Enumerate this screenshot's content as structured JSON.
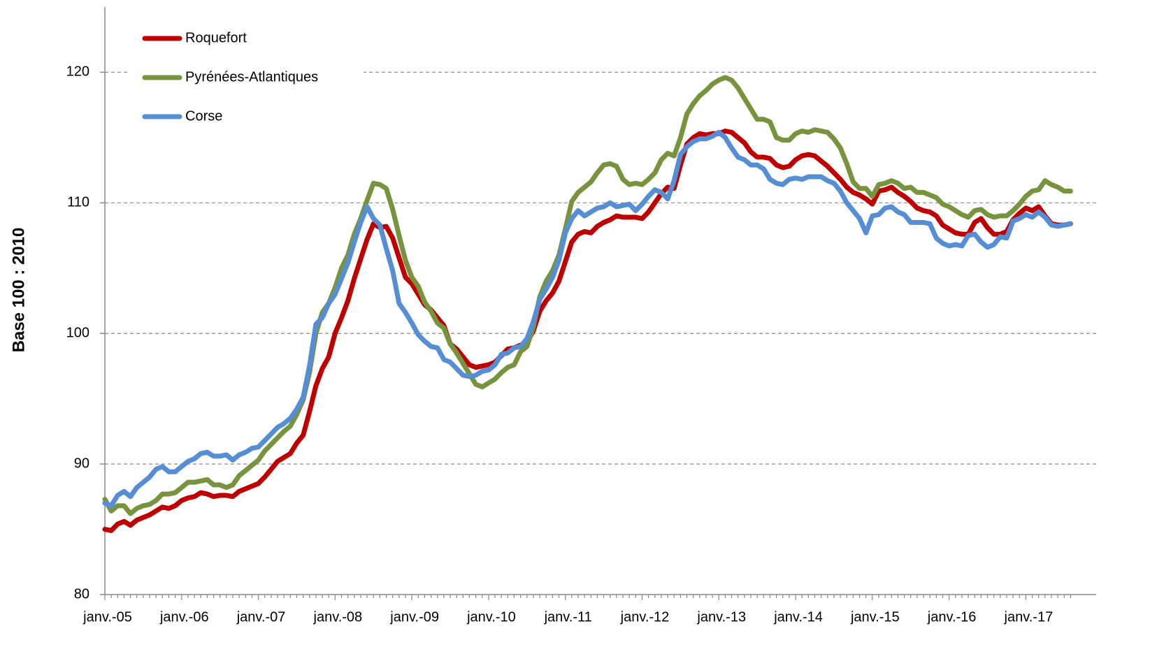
{
  "chart_data": {
    "type": "line",
    "ylabel": "Base 100 : 2010",
    "categories": [
      "janv.-05",
      null,
      null,
      null,
      null,
      null,
      null,
      null,
      null,
      null,
      null,
      null,
      "janv.-06",
      null,
      null,
      null,
      null,
      null,
      null,
      null,
      null,
      null,
      null,
      null,
      "janv.-07",
      null,
      null,
      null,
      null,
      null,
      null,
      null,
      null,
      null,
      null,
      null,
      "janv.-08",
      null,
      null,
      null,
      null,
      null,
      null,
      null,
      null,
      null,
      null,
      null,
      "janv.-09",
      null,
      null,
      null,
      null,
      null,
      null,
      null,
      null,
      null,
      null,
      null,
      "janv.-10",
      null,
      null,
      null,
      null,
      null,
      null,
      null,
      null,
      null,
      null,
      null,
      "janv.-11",
      null,
      null,
      null,
      null,
      null,
      null,
      null,
      null,
      null,
      null,
      null,
      "janv.-12",
      null,
      null,
      null,
      null,
      null,
      null,
      null,
      null,
      null,
      null,
      null,
      "janv.-13",
      null,
      null,
      null,
      null,
      null,
      null,
      null,
      null,
      null,
      null,
      null,
      "janv.-14",
      null,
      null,
      null,
      null,
      null,
      null,
      null,
      null,
      null,
      null,
      null,
      "janv.-15",
      null,
      null,
      null,
      null,
      null,
      null,
      null,
      null,
      null,
      null,
      null,
      "janv.-16",
      null,
      null,
      null,
      null,
      null,
      null,
      null,
      null,
      null,
      null,
      null,
      "janv.-17",
      null,
      null,
      null,
      null,
      null,
      null,
      null
    ],
    "series": [
      {
        "name": "Roquefort",
        "color": "#c00000",
        "values": [
          85.0,
          84.9,
          85.4,
          85.6,
          85.3,
          85.7,
          85.9,
          86.1,
          86.4,
          86.7,
          86.6,
          86.8,
          87.2,
          87.4,
          87.5,
          87.8,
          87.7,
          87.5,
          87.6,
          87.6,
          87.5,
          87.9,
          88.1,
          88.3,
          88.5,
          89.0,
          89.6,
          90.2,
          90.5,
          90.8,
          91.6,
          92.2,
          94.0,
          96.0,
          97.3,
          98.2,
          100.0,
          101.2,
          102.5,
          104.2,
          105.7,
          107.2,
          108.4,
          108.1,
          108.2,
          107.3,
          105.8,
          104.3,
          103.8,
          103.0,
          102.2,
          101.8,
          101.2,
          100.6,
          99.2,
          98.8,
          98.2,
          97.6,
          97.4,
          97.5,
          97.6,
          97.8,
          98.3,
          98.8,
          98.9,
          99.1,
          99.3,
          100.2,
          101.7,
          102.5,
          103.1,
          104.0,
          105.5,
          107.0,
          107.6,
          107.8,
          107.7,
          108.2,
          108.5,
          108.7,
          109.0,
          108.9,
          108.9,
          108.9,
          108.8,
          109.3,
          110.0,
          110.7,
          111.2,
          111.1,
          112.9,
          114.5,
          115.0,
          115.3,
          115.2,
          115.3,
          115.3,
          115.5,
          115.4,
          115.0,
          114.6,
          113.9,
          113.5,
          113.5,
          113.4,
          112.9,
          112.7,
          112.8,
          113.3,
          113.6,
          113.7,
          113.6,
          113.2,
          112.8,
          112.3,
          111.8,
          111.2,
          110.8,
          110.6,
          110.3,
          109.9,
          110.9,
          111.0,
          111.2,
          110.8,
          110.5,
          110.1,
          109.6,
          109.4,
          109.3,
          109.0,
          108.3,
          108.0,
          107.7,
          107.6,
          107.6,
          108.5,
          108.8,
          108.1,
          107.6,
          107.6,
          107.8,
          108.7,
          109.2,
          109.6,
          109.4,
          109.7,
          109.0,
          108.4,
          108.3,
          108.3,
          108.4
        ]
      },
      {
        "name": "Pyrénées-Atlantiques",
        "color": "#77933c",
        "values": [
          87.3,
          86.4,
          86.8,
          86.8,
          86.2,
          86.6,
          86.8,
          86.9,
          87.2,
          87.7,
          87.7,
          87.8,
          88.2,
          88.6,
          88.6,
          88.7,
          88.8,
          88.4,
          88.4,
          88.2,
          88.4,
          89.1,
          89.5,
          89.9,
          90.3,
          91.0,
          91.5,
          92.0,
          92.5,
          92.9,
          93.8,
          94.9,
          97.0,
          100.0,
          101.6,
          102.3,
          103.5,
          105.0,
          106.0,
          107.6,
          108.8,
          110.2,
          111.5,
          111.4,
          111.1,
          109.5,
          107.5,
          105.6,
          104.3,
          103.6,
          102.4,
          101.7,
          100.8,
          100.4,
          99.2,
          98.5,
          97.7,
          96.9,
          96.1,
          95.9,
          96.2,
          96.5,
          97.0,
          97.4,
          97.6,
          98.6,
          99.0,
          100.5,
          102.8,
          104.0,
          104.8,
          106.0,
          108.0,
          110.1,
          110.8,
          111.2,
          111.6,
          112.3,
          112.9,
          113.0,
          112.8,
          111.8,
          111.4,
          111.5,
          111.4,
          111.8,
          112.3,
          113.3,
          113.8,
          113.6,
          115.0,
          116.8,
          117.6,
          118.2,
          118.6,
          119.1,
          119.4,
          119.6,
          119.4,
          118.8,
          118.0,
          117.2,
          116.4,
          116.4,
          116.2,
          115.0,
          114.8,
          114.8,
          115.3,
          115.5,
          115.4,
          115.6,
          115.5,
          115.4,
          114.9,
          114.2,
          113.0,
          111.6,
          111.1,
          111.1,
          110.5,
          111.4,
          111.5,
          111.7,
          111.5,
          111.1,
          111.2,
          110.8,
          110.8,
          110.6,
          110.4,
          109.9,
          109.7,
          109.4,
          109.1,
          108.9,
          109.4,
          109.5,
          109.1,
          108.9,
          109.0,
          109.0,
          109.4,
          109.9,
          110.5,
          110.9,
          111.0,
          111.7,
          111.4,
          111.2,
          110.9,
          110.9
        ]
      },
      {
        "name": "Corse",
        "color": "#558ed5",
        "values": [
          87.0,
          86.8,
          87.6,
          87.9,
          87.5,
          88.2,
          88.6,
          89.0,
          89.6,
          89.8,
          89.4,
          89.4,
          89.8,
          90.2,
          90.4,
          90.8,
          90.9,
          90.6,
          90.6,
          90.7,
          90.3,
          90.7,
          90.9,
          91.2,
          91.3,
          91.8,
          92.3,
          92.8,
          93.1,
          93.5,
          94.2,
          95.1,
          97.5,
          100.7,
          101.2,
          102.3,
          103.0,
          104.2,
          105.4,
          107.0,
          108.5,
          109.7,
          108.8,
          108.3,
          106.5,
          104.8,
          102.3,
          101.6,
          100.8,
          99.9,
          99.4,
          99.0,
          98.9,
          98.0,
          97.8,
          97.3,
          96.8,
          96.7,
          96.8,
          97.1,
          97.2,
          97.6,
          98.4,
          98.5,
          98.9,
          99.0,
          99.6,
          100.9,
          102.6,
          103.4,
          104.3,
          105.6,
          107.7,
          108.8,
          109.4,
          109.0,
          109.3,
          109.6,
          109.7,
          110.0,
          109.7,
          109.8,
          109.9,
          109.4,
          109.9,
          110.5,
          111.0,
          110.8,
          110.3,
          111.7,
          113.7,
          114.3,
          114.7,
          114.9,
          114.9,
          115.1,
          115.4,
          115.0,
          114.2,
          113.5,
          113.3,
          112.9,
          112.9,
          112.6,
          111.8,
          111.5,
          111.4,
          111.8,
          111.9,
          111.8,
          112.0,
          112.0,
          112.0,
          111.7,
          111.5,
          110.9,
          110.0,
          109.4,
          108.8,
          107.7,
          109.0,
          109.1,
          109.6,
          109.7,
          109.3,
          109.1,
          108.5,
          108.5,
          108.5,
          108.4,
          107.3,
          106.9,
          106.7,
          106.8,
          106.7,
          107.5,
          107.6,
          107.0,
          106.6,
          106.8,
          107.4,
          107.3,
          108.6,
          108.8,
          109.1,
          108.9,
          109.3,
          108.9,
          108.3,
          108.2,
          108.3,
          108.4
        ]
      }
    ],
    "ylim": [
      80,
      125
    ],
    "yticks": [
      80,
      90,
      100,
      110,
      120
    ],
    "grid": true,
    "legend": "upper left"
  }
}
